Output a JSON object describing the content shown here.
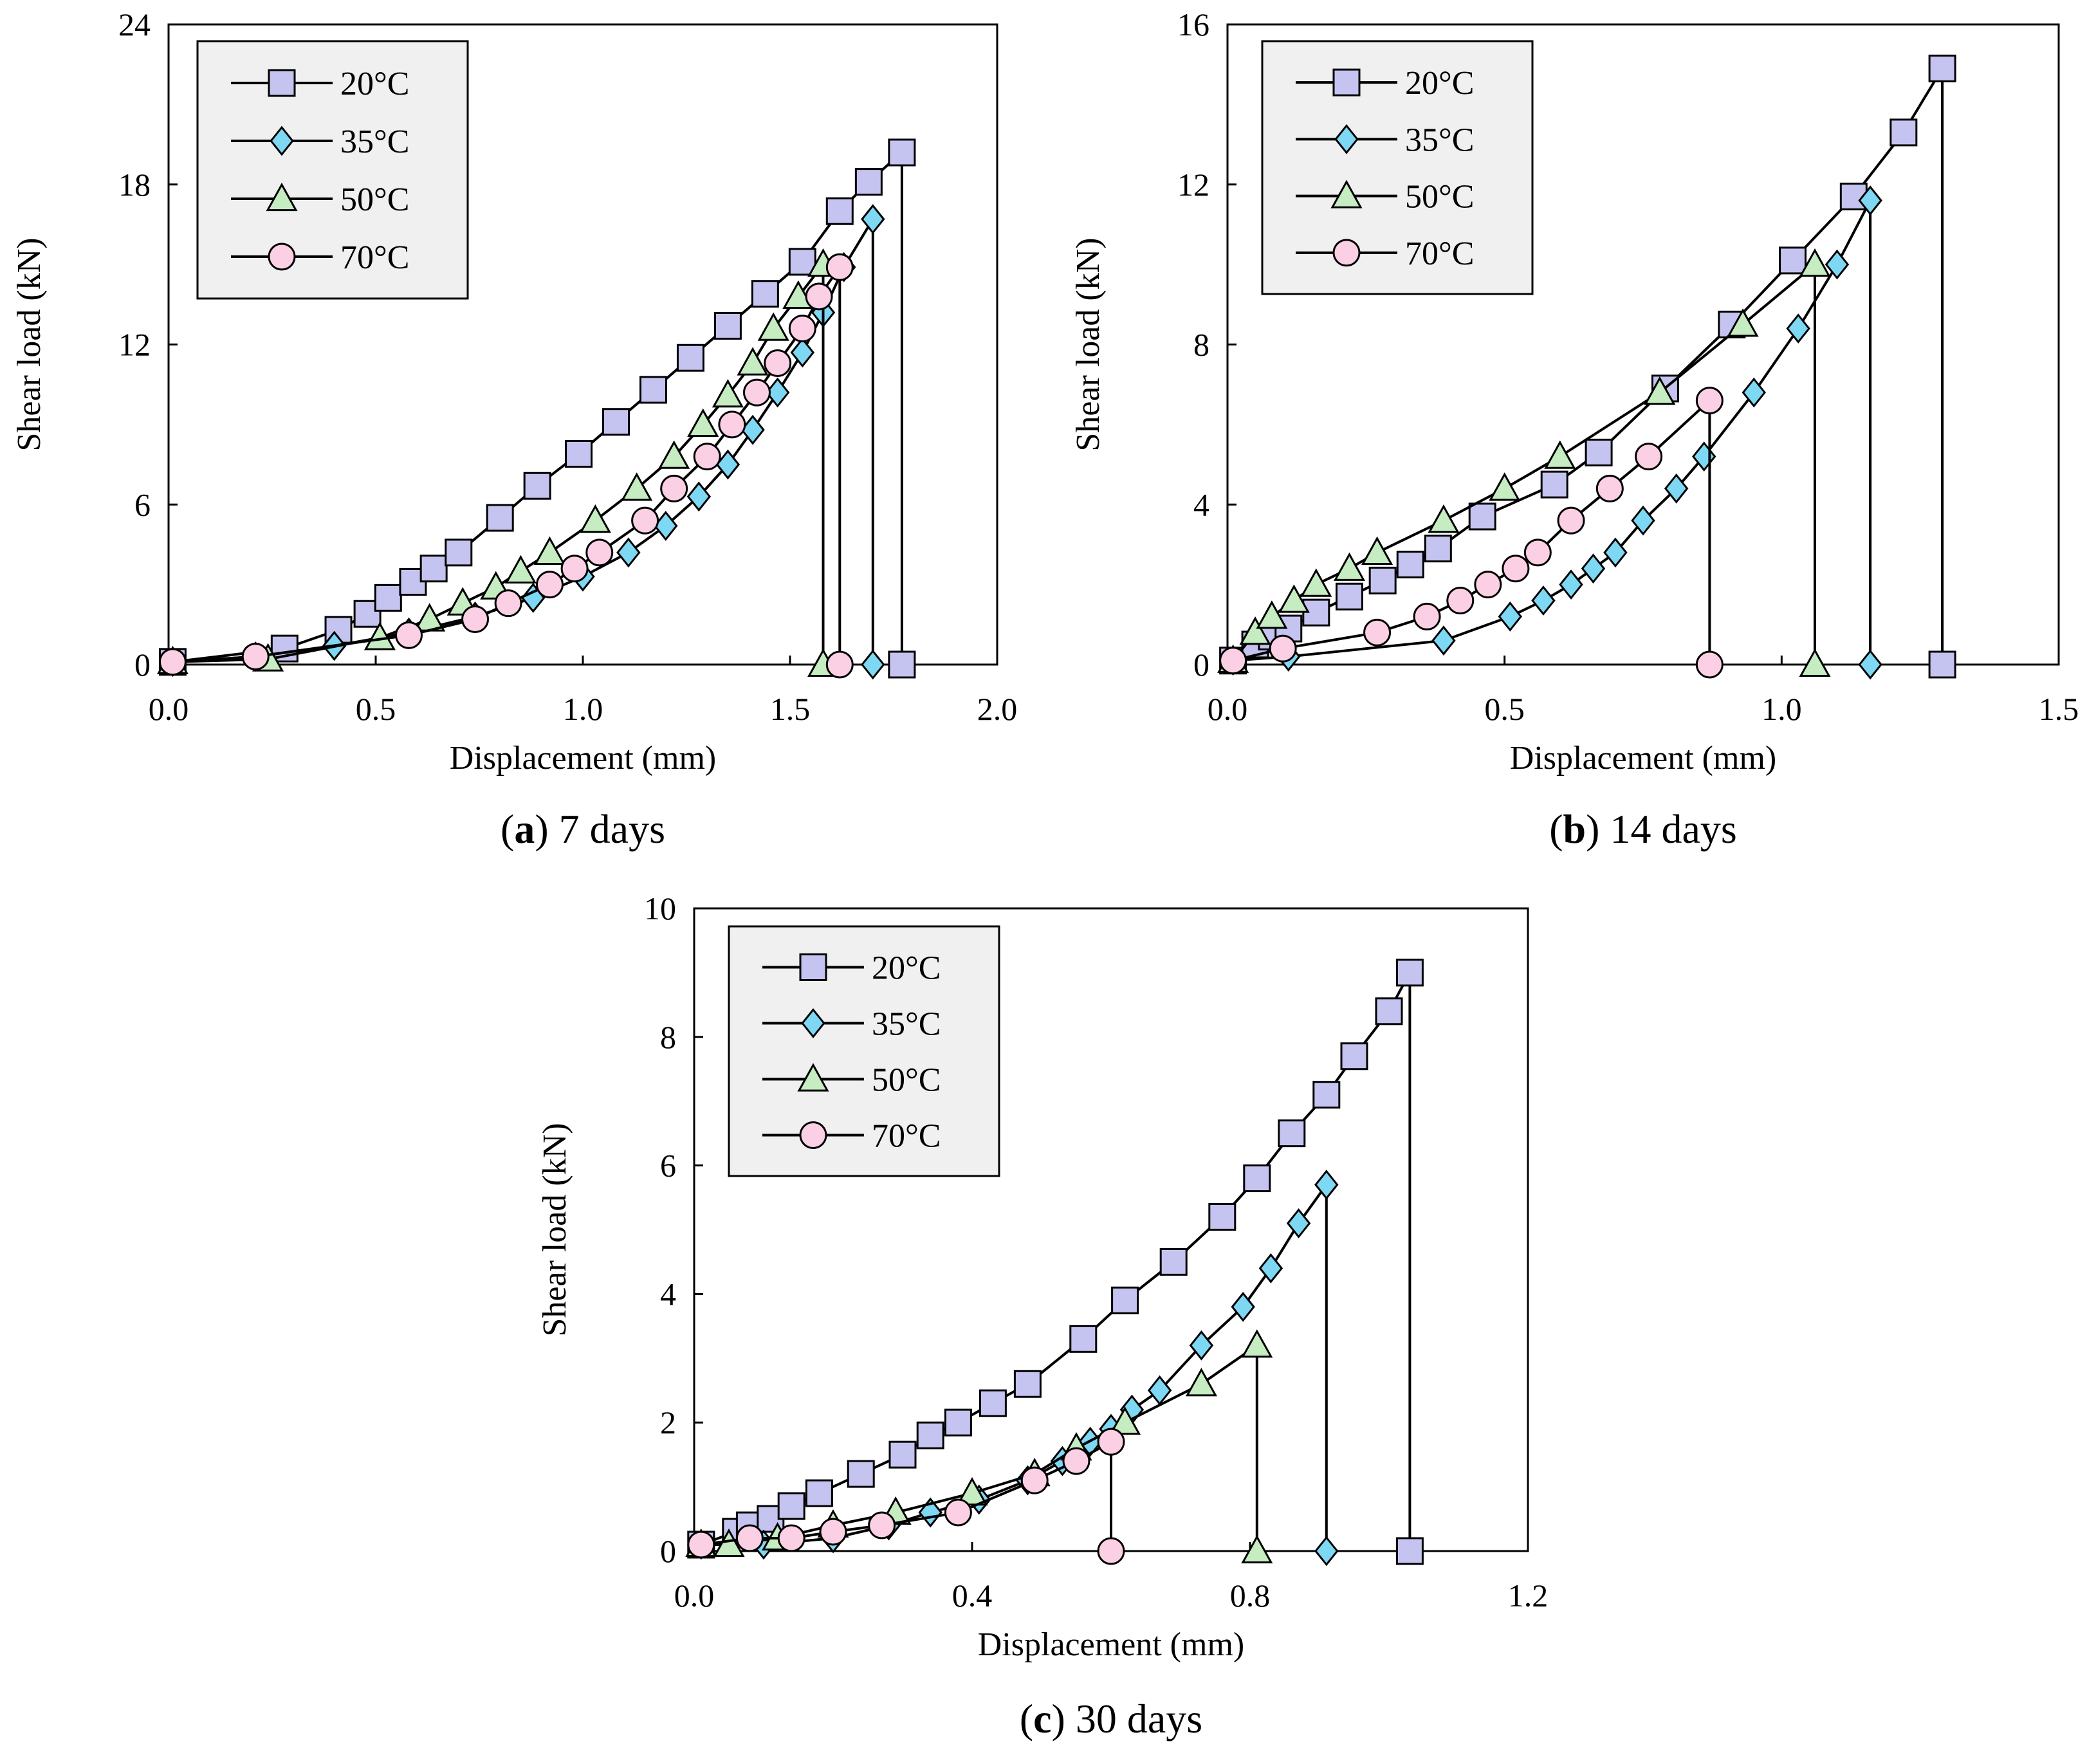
{
  "chart_data": [
    {
      "id": "a",
      "type": "line",
      "caption_letter": "a",
      "caption_text": "7 days",
      "xlabel": "Displacement (mm)",
      "ylabel": "Shear load (kN)",
      "xlim": [
        0,
        2.0
      ],
      "ylim": [
        0,
        24
      ],
      "xticks": [
        "0.0",
        "0.5",
        "1.0",
        "1.5",
        "2.0"
      ],
      "yticks": [
        "0",
        "6",
        "12",
        "18",
        "24"
      ],
      "legend_position": "top-left",
      "series": [
        {
          "name": "20°C",
          "marker": "square",
          "x": [
            0.01,
            0.28,
            0.41,
            0.48,
            0.53,
            0.59,
            0.64,
            0.7,
            0.8,
            0.89,
            0.99,
            1.08,
            1.17,
            1.26,
            1.35,
            1.44,
            1.53,
            1.62,
            1.69,
            1.77,
            1.77
          ],
          "y": [
            0.1,
            0.6,
            1.3,
            1.9,
            2.5,
            3.1,
            3.6,
            4.2,
            5.5,
            6.7,
            7.9,
            9.1,
            10.3,
            11.5,
            12.7,
            13.9,
            15.1,
            17.0,
            18.1,
            19.2,
            0
          ]
        },
        {
          "name": "35°C",
          "marker": "diamond",
          "x": [
            0.01,
            0.21,
            0.4,
            0.58,
            0.74,
            0.88,
            1.0,
            1.11,
            1.2,
            1.28,
            1.35,
            1.41,
            1.47,
            1.53,
            1.58,
            1.63,
            1.7,
            1.7
          ],
          "y": [
            0.1,
            0.3,
            0.7,
            1.2,
            1.8,
            2.5,
            3.3,
            4.2,
            5.2,
            6.3,
            7.5,
            8.8,
            10.2,
            11.7,
            13.2,
            14.9,
            16.7,
            0
          ]
        },
        {
          "name": "50°C",
          "marker": "triangle",
          "x": [
            0.01,
            0.24,
            0.51,
            0.63,
            0.71,
            0.79,
            0.85,
            0.92,
            1.03,
            1.13,
            1.22,
            1.29,
            1.35,
            1.41,
            1.46,
            1.52,
            1.58,
            1.58
          ],
          "y": [
            0.1,
            0.2,
            1.0,
            1.7,
            2.3,
            2.9,
            3.5,
            4.2,
            5.4,
            6.6,
            7.8,
            9.0,
            10.1,
            11.3,
            12.6,
            13.8,
            15.0,
            0
          ]
        },
        {
          "name": "70°C",
          "marker": "circle",
          "x": [
            0.01,
            0.21,
            0.58,
            0.74,
            0.82,
            0.92,
            0.98,
            1.04,
            1.15,
            1.22,
            1.3,
            1.36,
            1.42,
            1.47,
            1.53,
            1.57,
            1.62,
            1.62
          ],
          "y": [
            0.1,
            0.3,
            1.1,
            1.7,
            2.3,
            3.0,
            3.6,
            4.2,
            5.4,
            6.6,
            7.8,
            9.0,
            10.2,
            11.3,
            12.6,
            13.8,
            14.9,
            0
          ]
        }
      ]
    },
    {
      "id": "b",
      "type": "line",
      "caption_letter": "b",
      "caption_text": "14 days",
      "xlabel": "Displacement (mm)",
      "ylabel": "Shear load (kN)",
      "xlim": [
        0,
        1.5
      ],
      "ylim": [
        0,
        16
      ],
      "xticks": [
        "0.0",
        "0.5",
        "1.0",
        "1.5"
      ],
      "yticks": [
        "0",
        "4",
        "8",
        "12",
        "16"
      ],
      "legend_position": "top-left",
      "series": [
        {
          "name": "20°C",
          "marker": "square",
          "x": [
            0.01,
            0.05,
            0.08,
            0.11,
            0.16,
            0.22,
            0.28,
            0.33,
            0.38,
            0.46,
            0.59,
            0.67,
            0.79,
            0.91,
            1.02,
            1.13,
            1.22,
            1.29,
            1.29
          ],
          "y": [
            0.1,
            0.5,
            0.7,
            0.9,
            1.3,
            1.7,
            2.1,
            2.5,
            2.9,
            3.7,
            4.5,
            5.3,
            6.9,
            8.5,
            10.1,
            11.7,
            13.3,
            14.9,
            0
          ]
        },
        {
          "name": "35°C",
          "marker": "diamond",
          "x": [
            0.01,
            0.11,
            0.39,
            0.51,
            0.57,
            0.62,
            0.66,
            0.7,
            0.75,
            0.81,
            0.86,
            0.95,
            1.03,
            1.1,
            1.16,
            1.16
          ],
          "y": [
            0.1,
            0.2,
            0.6,
            1.2,
            1.6,
            2.0,
            2.4,
            2.8,
            3.6,
            4.4,
            5.2,
            6.8,
            8.4,
            10.0,
            11.6,
            0
          ]
        },
        {
          "name": "50°C",
          "marker": "triangle",
          "x": [
            0.01,
            0.05,
            0.08,
            0.12,
            0.16,
            0.22,
            0.27,
            0.39,
            0.5,
            0.6,
            0.78,
            0.93,
            1.06,
            1.06
          ],
          "y": [
            0.1,
            0.8,
            1.2,
            1.6,
            2.0,
            2.4,
            2.8,
            3.6,
            4.4,
            5.2,
            6.8,
            8.5,
            10.0,
            0
          ]
        },
        {
          "name": "70°C",
          "marker": "circle",
          "x": [
            0.01,
            0.1,
            0.27,
            0.36,
            0.42,
            0.47,
            0.52,
            0.56,
            0.62,
            0.69,
            0.76,
            0.87,
            0.87
          ],
          "y": [
            0.1,
            0.4,
            0.8,
            1.2,
            1.6,
            2.0,
            2.4,
            2.8,
            3.6,
            4.4,
            5.2,
            6.6,
            0
          ]
        }
      ]
    },
    {
      "id": "c",
      "type": "line",
      "caption_letter": "c",
      "caption_text": "30 days",
      "xlabel": "Displacement (mm)",
      "ylabel": "Shear load (kN)",
      "xlim": [
        0,
        1.2
      ],
      "ylim": [
        0,
        10
      ],
      "xticks": [
        "0.0",
        "0.4",
        "0.8",
        "1.2"
      ],
      "yticks": [
        "0",
        "2",
        "4",
        "6",
        "8",
        "10"
      ],
      "legend_position": "top-left",
      "series": [
        {
          "name": "20°C",
          "marker": "square",
          "x": [
            0.01,
            0.06,
            0.08,
            0.11,
            0.14,
            0.18,
            0.24,
            0.3,
            0.34,
            0.38,
            0.43,
            0.48,
            0.56,
            0.62,
            0.69,
            0.76,
            0.81,
            0.86,
            0.91,
            0.95,
            1.0,
            1.03,
            1.03
          ],
          "y": [
            0.1,
            0.3,
            0.4,
            0.5,
            0.7,
            0.9,
            1.2,
            1.5,
            1.8,
            2.0,
            2.3,
            2.6,
            3.3,
            3.9,
            4.5,
            5.2,
            5.8,
            6.5,
            7.1,
            7.7,
            8.4,
            9.0,
            0
          ]
        },
        {
          "name": "35°C",
          "marker": "diamond",
          "x": [
            0.01,
            0.1,
            0.2,
            0.28,
            0.34,
            0.41,
            0.48,
            0.53,
            0.57,
            0.6,
            0.63,
            0.67,
            0.73,
            0.79,
            0.83,
            0.87,
            0.91,
            0.91
          ],
          "y": [
            0.1,
            0.1,
            0.2,
            0.4,
            0.6,
            0.8,
            1.1,
            1.4,
            1.7,
            1.9,
            2.2,
            2.5,
            3.2,
            3.8,
            4.4,
            5.1,
            5.7,
            0
          ]
        },
        {
          "name": "50°C",
          "marker": "triangle",
          "x": [
            0.01,
            0.05,
            0.12,
            0.2,
            0.29,
            0.4,
            0.49,
            0.55,
            0.62,
            0.73,
            0.81,
            0.81
          ],
          "y": [
            0.1,
            0.1,
            0.2,
            0.4,
            0.6,
            0.9,
            1.2,
            1.6,
            2.0,
            2.6,
            3.2,
            0
          ]
        },
        {
          "name": "70°C",
          "marker": "circle",
          "x": [
            0.01,
            0.08,
            0.14,
            0.2,
            0.27,
            0.38,
            0.49,
            0.55,
            0.6,
            0.6
          ],
          "y": [
            0.1,
            0.2,
            0.2,
            0.3,
            0.4,
            0.6,
            1.1,
            1.4,
            1.7,
            0
          ]
        }
      ]
    }
  ],
  "styles": {
    "20°C": {
      "fill": "#c5c3f0"
    },
    "35°C": {
      "fill": "#7ed8f4"
    },
    "50°C": {
      "fill": "#c6ecc2"
    },
    "70°C": {
      "fill": "#fbd0e4"
    },
    "line_color": "#000000",
    "legend_bg": "#f0f0f0"
  }
}
